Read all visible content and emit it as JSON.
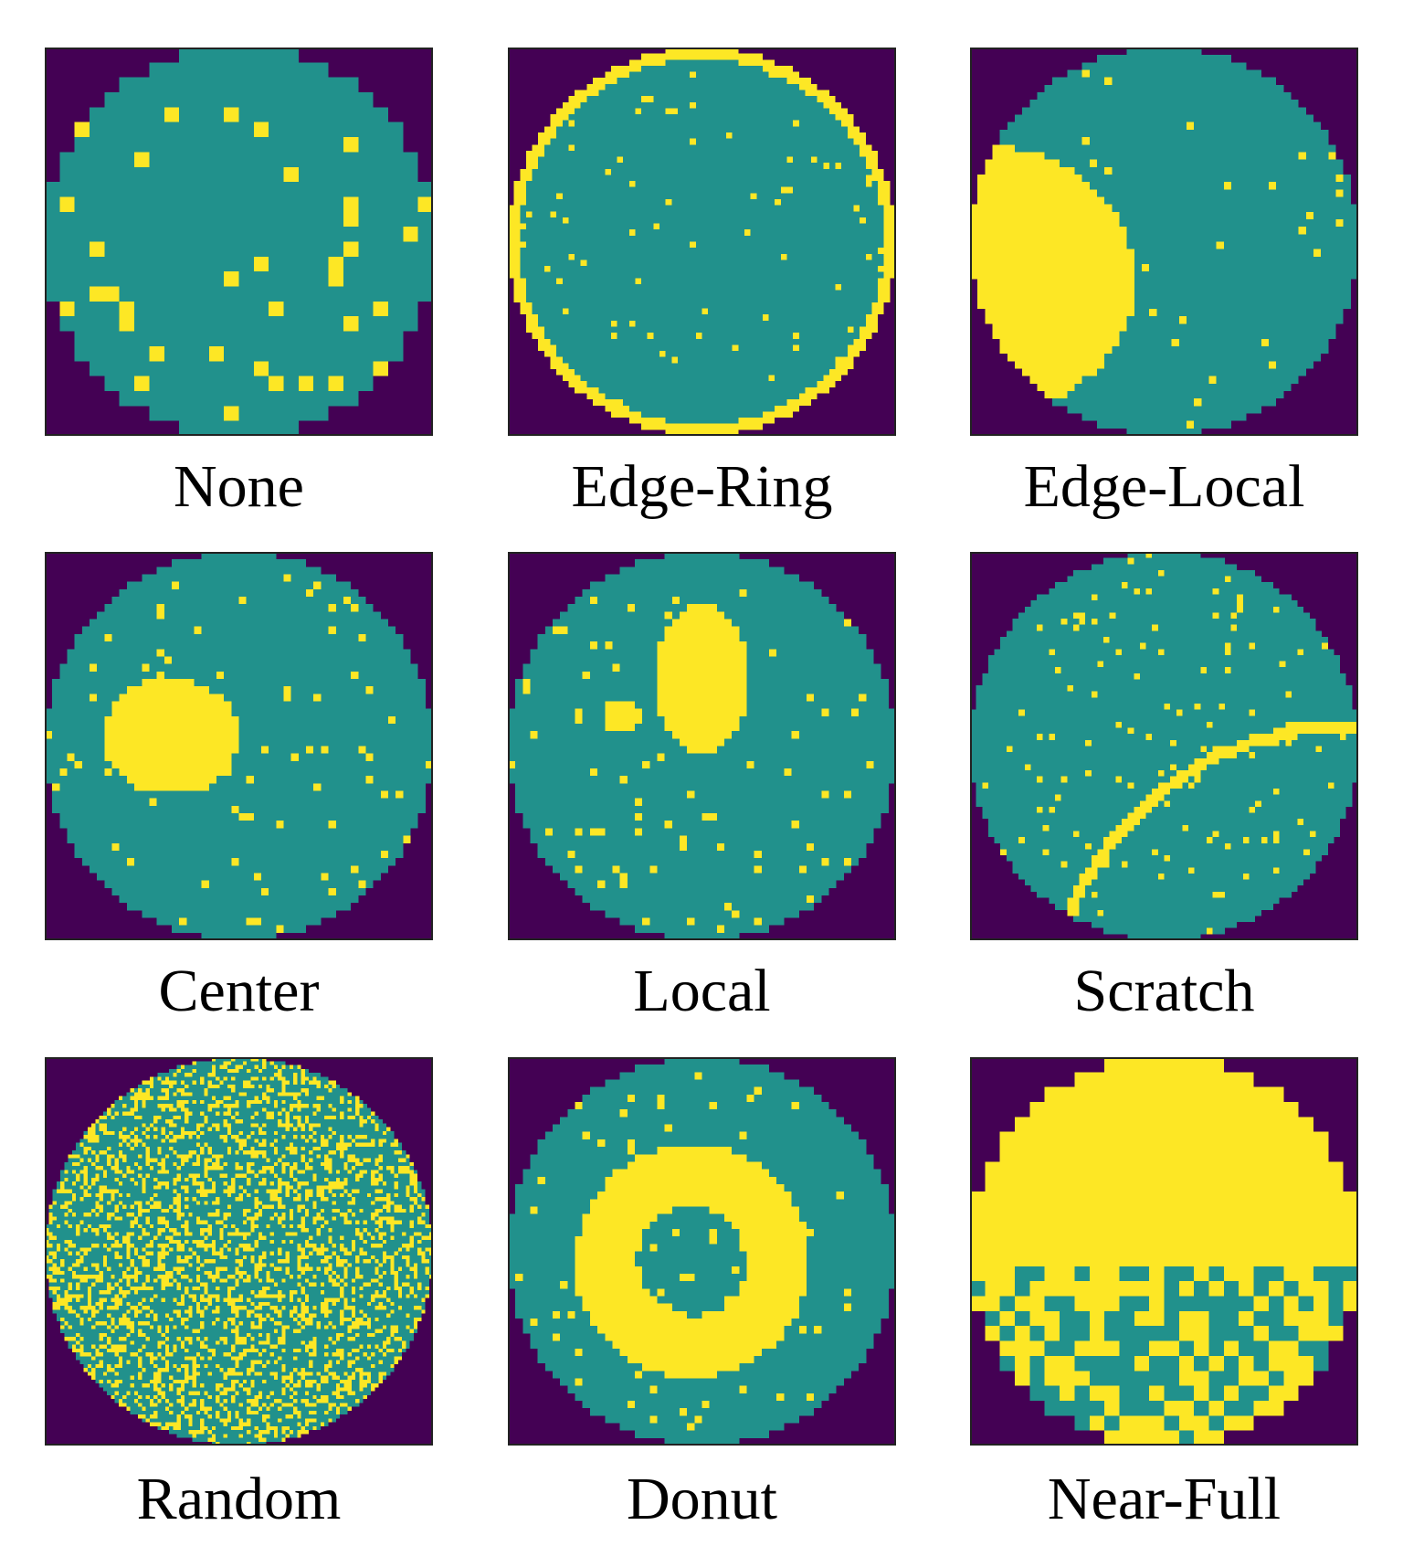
{
  "panels": [
    {
      "label": "None"
    },
    {
      "label": "Edge-Ring"
    },
    {
      "label": "Edge-Local"
    },
    {
      "label": "Center"
    },
    {
      "label": "Local"
    },
    {
      "label": "Scratch"
    },
    {
      "label": "Random"
    },
    {
      "label": "Donut"
    },
    {
      "label": "Near-Full"
    }
  ]
}
